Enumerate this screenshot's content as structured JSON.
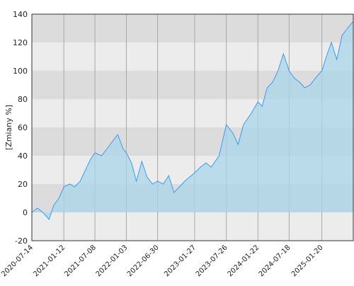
{
  "chart_data": {
    "type": "area",
    "y_label": "[Zmiany %]",
    "x": [
      "2020-07-14",
      "2020-08-15",
      "2020-09-15",
      "2020-10-20",
      "2020-11-15",
      "2020-12-15",
      "2021-01-12",
      "2021-02-15",
      "2021-03-15",
      "2021-04-15",
      "2021-05-15",
      "2021-06-15",
      "2021-07-08",
      "2021-08-15",
      "2021-09-15",
      "2021-10-15",
      "2021-11-15",
      "2021-12-15",
      "2022-01-03",
      "2022-02-01",
      "2022-03-01",
      "2022-04-01",
      "2022-05-01",
      "2022-06-01",
      "2022-06-30",
      "2022-08-01",
      "2022-09-01",
      "2022-10-01",
      "2022-11-01",
      "2022-12-01",
      "2023-01-27",
      "2023-03-01",
      "2023-04-01",
      "2023-05-01",
      "2023-06-15",
      "2023-07-26",
      "2023-09-01",
      "2023-10-01",
      "2023-11-01",
      "2023-12-15",
      "2024-01-22",
      "2024-02-15",
      "2024-03-15",
      "2024-04-15",
      "2024-05-15",
      "2024-06-15",
      "2024-07-18",
      "2024-08-15",
      "2024-09-15",
      "2024-10-15",
      "2024-11-15",
      "2024-12-15",
      "2025-01-20",
      "2025-02-15",
      "2025-03-15",
      "2025-04-15",
      "2025-05-15",
      "2025-06-15",
      "2025-07-18"
    ],
    "series": [
      {
        "color": "#3a9cf0",
        "fill": "#a9d6ea",
        "values": [
          0,
          3,
          0,
          -5,
          5,
          10,
          18,
          20,
          18,
          22,
          30,
          38,
          42,
          40,
          45,
          50,
          55,
          45,
          42,
          35,
          22,
          36,
          25,
          20,
          22,
          20,
          26,
          14,
          18,
          22,
          28,
          32,
          35,
          32,
          40,
          62,
          56,
          48,
          62,
          70,
          78,
          75,
          88,
          92,
          100,
          112,
          100,
          95,
          92,
          88,
          90,
          95,
          100,
          110,
          120,
          108,
          125,
          130,
          135
        ]
      }
    ],
    "xlim": [
      "2020-07-14",
      "2025-07-18"
    ],
    "xticks": [
      "2020-07-14",
      "2021-01-12",
      "2021-07-08",
      "2022-01-03",
      "2022-06-30",
      "2023-01-27",
      "2023-07-26",
      "2024-01-22",
      "2024-07-18",
      "2025-01-20"
    ],
    "ylim": [
      -20,
      140
    ],
    "yticks": [
      -20,
      0,
      20,
      40,
      60,
      80,
      100,
      120,
      140
    ],
    "grid": true,
    "band_colors": [
      "#ececec",
      "#dcdcdc"
    ]
  }
}
